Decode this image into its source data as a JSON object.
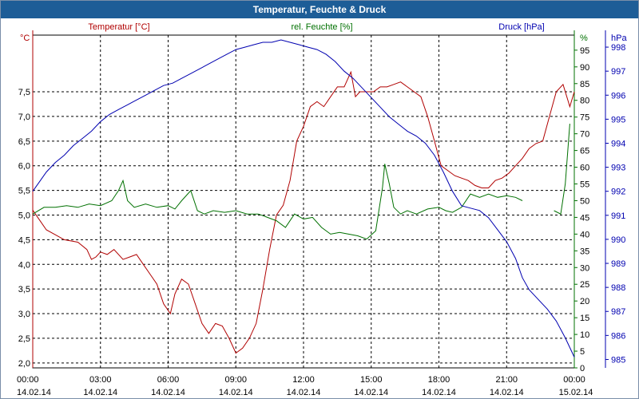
{
  "window": {
    "title": "Temperatur, Feuchte & Druck"
  },
  "chart_data": {
    "type": "line",
    "title": "Temperatur, Feuchte & Druck",
    "grid": true,
    "colors": {
      "temperature": "#b00000",
      "humidity": "#007000",
      "pressure": "#0000b0",
      "text": "#000000",
      "grid": "#000000"
    },
    "x_ticks": [
      {
        "time": "00:00",
        "date": "14.02.14"
      },
      {
        "time": "03:00",
        "date": "14.02.14"
      },
      {
        "time": "06:00",
        "date": "14.02.14"
      },
      {
        "time": "09:00",
        "date": "14.02.14"
      },
      {
        "time": "12:00",
        "date": "14.02.14"
      },
      {
        "time": "15:00",
        "date": "14.02.14"
      },
      {
        "time": "18:00",
        "date": "14.02.14"
      },
      {
        "time": "21:00",
        "date": "14.02.14"
      },
      {
        "time": "00:00",
        "date": "15.02.14"
      }
    ],
    "xlim_hours": [
      0,
      24
    ],
    "axes": {
      "temperature": {
        "label": "Temperatur [°C]",
        "unit": "°C",
        "ylim": [
          1.9,
          8.65
        ],
        "ticks": [
          "2,0",
          "2,5",
          "3,0",
          "3,5",
          "4,0",
          "4,5",
          "5,0",
          "5,5",
          "6,0",
          "6,5",
          "7,0",
          "7,5"
        ]
      },
      "humidity": {
        "label": "rel. Feuchte [%]",
        "unit": "%",
        "ylim": [
          0,
          99.5
        ],
        "ticks": [
          "0",
          "5",
          "10",
          "15",
          "20",
          "25",
          "30",
          "35",
          "40",
          "45",
          "50",
          "55",
          "60",
          "65",
          "70",
          "75",
          "80",
          "85",
          "90",
          "95"
        ]
      },
      "pressure": {
        "label": "Druck [hPa]",
        "unit": "hPa",
        "ylim": [
          984.65,
          998.5
        ],
        "ticks": [
          "985",
          "986",
          "987",
          "988",
          "989",
          "990",
          "991",
          "992",
          "993",
          "994",
          "995",
          "996",
          "997",
          "998"
        ]
      }
    },
    "series": [
      {
        "name": "Temperatur",
        "axis": "temperature",
        "segments": [
          [
            [
              0,
              5.1
            ],
            [
              0.3,
              4.9
            ],
            [
              0.6,
              4.7
            ],
            [
              1.0,
              4.6
            ],
            [
              1.4,
              4.5
            ],
            [
              2.0,
              4.45
            ],
            [
              2.4,
              4.3
            ],
            [
              2.6,
              4.1
            ],
            [
              2.8,
              4.15
            ],
            [
              3.0,
              4.25
            ],
            [
              3.3,
              4.2
            ],
            [
              3.6,
              4.3
            ],
            [
              4.0,
              4.1
            ],
            [
              4.3,
              4.15
            ],
            [
              4.6,
              4.2
            ],
            [
              4.9,
              4.0
            ],
            [
              5.2,
              3.8
            ],
            [
              5.5,
              3.6
            ],
            [
              5.8,
              3.2
            ],
            [
              6.1,
              3.0
            ],
            [
              6.3,
              3.4
            ],
            [
              6.6,
              3.7
            ],
            [
              6.9,
              3.6
            ],
            [
              7.2,
              3.2
            ],
            [
              7.5,
              2.8
            ],
            [
              7.8,
              2.6
            ],
            [
              8.1,
              2.8
            ],
            [
              8.4,
              2.75
            ],
            [
              8.7,
              2.5
            ],
            [
              9.0,
              2.2
            ],
            [
              9.3,
              2.3
            ],
            [
              9.6,
              2.5
            ],
            [
              9.9,
              2.8
            ],
            [
              10.2,
              3.5
            ],
            [
              10.5,
              4.3
            ],
            [
              10.8,
              5.0
            ],
            [
              11.1,
              5.2
            ],
            [
              11.4,
              5.7
            ],
            [
              11.7,
              6.5
            ],
            [
              12.0,
              6.8
            ],
            [
              12.3,
              7.2
            ],
            [
              12.6,
              7.3
            ],
            [
              12.9,
              7.2
            ],
            [
              13.2,
              7.4
            ],
            [
              13.5,
              7.6
            ],
            [
              13.8,
              7.6
            ],
            [
              14.1,
              7.9
            ],
            [
              14.3,
              7.4
            ],
            [
              14.5,
              7.5
            ],
            [
              14.8,
              7.5
            ],
            [
              15.1,
              7.5
            ],
            [
              15.4,
              7.6
            ],
            [
              15.7,
              7.6
            ],
            [
              16.0,
              7.65
            ],
            [
              16.3,
              7.7
            ],
            [
              16.6,
              7.6
            ],
            [
              16.9,
              7.5
            ],
            [
              17.2,
              7.4
            ],
            [
              17.5,
              7.0
            ],
            [
              17.8,
              6.5
            ],
            [
              18.1,
              6.0
            ],
            [
              18.4,
              5.9
            ],
            [
              18.7,
              5.8
            ],
            [
              19.0,
              5.75
            ],
            [
              19.3,
              5.7
            ],
            [
              19.6,
              5.6
            ],
            [
              19.9,
              5.55
            ],
            [
              20.2,
              5.55
            ],
            [
              20.5,
              5.7
            ],
            [
              20.8,
              5.75
            ],
            [
              21.1,
              5.85
            ],
            [
              21.4,
              6.0
            ],
            [
              21.7,
              6.15
            ],
            [
              22.0,
              6.35
            ],
            [
              22.3,
              6.45
            ],
            [
              22.6,
              6.5
            ],
            [
              22.9,
              7.0
            ],
            [
              23.2,
              7.5
            ],
            [
              23.5,
              7.65
            ],
            [
              23.8,
              7.2
            ],
            [
              24.0,
              7.5
            ]
          ]
        ]
      },
      {
        "name": "rel. Feuchte",
        "axis": "humidity",
        "segments": [
          [
            [
              0,
              46
            ],
            [
              0.5,
              48
            ],
            [
              1.0,
              48
            ],
            [
              1.5,
              48.5
            ],
            [
              2.0,
              48
            ],
            [
              2.5,
              49
            ],
            [
              3.0,
              48.5
            ],
            [
              3.5,
              50
            ],
            [
              3.8,
              53
            ],
            [
              4.0,
              56
            ],
            [
              4.2,
              50
            ],
            [
              4.5,
              48
            ],
            [
              5.0,
              49
            ],
            [
              5.5,
              48
            ],
            [
              6.0,
              48.5
            ],
            [
              6.3,
              47.5
            ],
            [
              6.6,
              50
            ],
            [
              7.0,
              53
            ],
            [
              7.3,
              47
            ],
            [
              7.6,
              46
            ],
            [
              8.0,
              47
            ],
            [
              8.5,
              46.5
            ],
            [
              9.0,
              47
            ],
            [
              9.5,
              46
            ],
            [
              10.0,
              46
            ],
            [
              10.4,
              45
            ],
            [
              10.8,
              44
            ],
            [
              11.2,
              42
            ],
            [
              11.6,
              46
            ],
            [
              12.0,
              44.5
            ],
            [
              12.4,
              45
            ],
            [
              12.8,
              42
            ],
            [
              13.2,
              40
            ],
            [
              13.6,
              40.5
            ],
            [
              14.0,
              40
            ],
            [
              14.4,
              39.5
            ],
            [
              14.8,
              38.5
            ],
            [
              15.2,
              41
            ],
            [
              15.5,
              54
            ],
            [
              15.6,
              61
            ],
            [
              15.8,
              55
            ],
            [
              16.0,
              48
            ],
            [
              16.3,
              46
            ],
            [
              16.6,
              47
            ],
            [
              17.0,
              46
            ],
            [
              17.5,
              47.5
            ],
            [
              18.0,
              48
            ],
            [
              18.3,
              47
            ],
            [
              18.6,
              46.5
            ],
            [
              19.0,
              48
            ],
            [
              19.4,
              52
            ],
            [
              19.8,
              51
            ],
            [
              20.2,
              52
            ],
            [
              20.6,
              51
            ],
            [
              21.0,
              51.5
            ],
            [
              21.4,
              51
            ],
            [
              21.7,
              50
            ]
          ],
          [
            [
              23.1,
              47
            ],
            [
              23.4,
              46
            ],
            [
              23.6,
              55
            ],
            [
              23.8,
              73
            ]
          ]
        ]
      },
      {
        "name": "Druck",
        "axis": "pressure",
        "segments": [
          [
            [
              0,
              992
            ],
            [
              0.3,
              992.4
            ],
            [
              0.6,
              992.8
            ],
            [
              1.0,
              993.2
            ],
            [
              1.4,
              993.5
            ],
            [
              1.8,
              993.9
            ],
            [
              2.2,
              994.2
            ],
            [
              2.6,
              994.5
            ],
            [
              3.0,
              994.9
            ],
            [
              3.4,
              995.2
            ],
            [
              3.8,
              995.4
            ],
            [
              4.2,
              995.6
            ],
            [
              4.6,
              995.8
            ],
            [
              5.0,
              996.0
            ],
            [
              5.4,
              996.2
            ],
            [
              5.8,
              996.4
            ],
            [
              6.2,
              996.5
            ],
            [
              6.6,
              996.7
            ],
            [
              7.0,
              996.9
            ],
            [
              7.4,
              997.1
            ],
            [
              7.8,
              997.3
            ],
            [
              8.2,
              997.5
            ],
            [
              8.6,
              997.7
            ],
            [
              9.0,
              997.9
            ],
            [
              9.4,
              998.0
            ],
            [
              9.8,
              998.1
            ],
            [
              10.2,
              998.2
            ],
            [
              10.6,
              998.2
            ],
            [
              11.0,
              998.3
            ],
            [
              11.4,
              998.2
            ],
            [
              11.8,
              998.1
            ],
            [
              12.2,
              998.0
            ],
            [
              12.6,
              997.9
            ],
            [
              13.0,
              997.7
            ],
            [
              13.4,
              997.4
            ],
            [
              13.8,
              997.0
            ],
            [
              14.2,
              996.7
            ],
            [
              14.6,
              996.3
            ],
            [
              15.0,
              995.9
            ],
            [
              15.4,
              995.5
            ],
            [
              15.8,
              995.1
            ],
            [
              16.2,
              994.8
            ],
            [
              16.6,
              994.5
            ],
            [
              17.0,
              994.3
            ],
            [
              17.4,
              994.0
            ],
            [
              17.8,
              993.5
            ],
            [
              18.2,
              992.8
            ],
            [
              18.6,
              992.0
            ],
            [
              19.0,
              991.4
            ],
            [
              19.4,
              991.3
            ],
            [
              19.8,
              991.2
            ],
            [
              20.2,
              990.9
            ],
            [
              20.6,
              990.4
            ],
            [
              21.0,
              989.9
            ],
            [
              21.4,
              989.2
            ],
            [
              21.7,
              988.4
            ],
            [
              22.0,
              987.9
            ],
            [
              22.4,
              987.5
            ],
            [
              22.8,
              987.1
            ],
            [
              23.2,
              986.6
            ],
            [
              23.6,
              985.9
            ],
            [
              24.0,
              985.1
            ]
          ]
        ]
      }
    ]
  }
}
